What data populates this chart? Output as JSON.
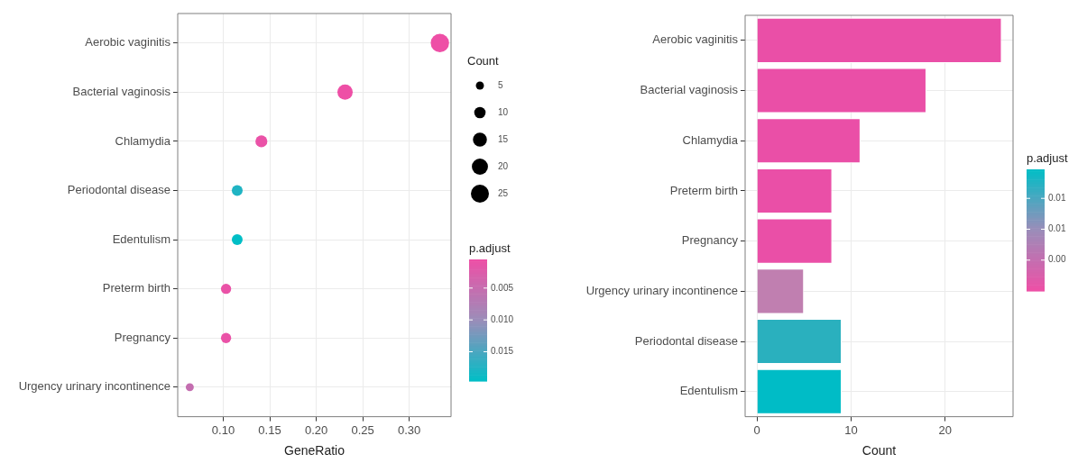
{
  "chart_data": [
    {
      "type": "bubble",
      "orientation": "horizontal",
      "xlabel": "GeneRatio",
      "legend_title": "Count",
      "clabel": "p.adjust",
      "categories": [
        "Aerobic vaginitis",
        "Bacterial vaginosis",
        "Chlamydia",
        "Periodontal disease",
        "Edentulism",
        "Preterm birth",
        "Pregnancy",
        "Urgency urinary incontinence"
      ],
      "values": [
        0.333,
        0.231,
        0.141,
        0.115,
        0.115,
        0.103,
        0.103,
        0.064
      ],
      "sizes": [
        26,
        18,
        11,
        9,
        9,
        8,
        8,
        5
      ],
      "size_legend": [
        5,
        10,
        15,
        20,
        25
      ],
      "cvalues": [
        0.0005,
        0.0005,
        0.001,
        0.0176,
        0.0196,
        0.001,
        0.001,
        0.0053
      ],
      "clim": [
        0.0196,
        0.0005
      ],
      "cticks": [
        0.005,
        {
          "value": 0.01,
          "label": "0.010"
        },
        0.015
      ],
      "xlim": [
        0.051,
        0.345
      ],
      "xticks": [
        {
          "value": 0.1,
          "label": "0.10"
        },
        {
          "value": 0.15,
          "label": "0.15"
        },
        {
          "value": 0.2,
          "label": "0.20"
        },
        {
          "value": 0.25,
          "label": "0.25"
        },
        {
          "value": 0.3,
          "label": "0.30"
        }
      ],
      "grid": true
    },
    {
      "type": "bar",
      "orientation": "horizontal",
      "xlabel": "Count",
      "clabel": "p.adjust",
      "categories": [
        "Aerobic vaginitis",
        "Bacterial vaginosis",
        "Chlamydia",
        "Preterm birth",
        "Pregnancy",
        "Urgency urinary incontinence",
        "Periodontal disease",
        "Edentulism"
      ],
      "values": [
        26,
        18,
        11,
        8,
        8,
        5,
        9,
        9
      ],
      "colors": [
        "#ea4fa7",
        "#ea4fa7",
        "#ea4fa7",
        "#ea4fa7",
        "#ea4fa7",
        "#c07fb0",
        "#2ab0be",
        "#00bcc6"
      ],
      "clim": [
        0.0,
        0.0197
      ],
      "cticks": [
        {
          "value": 0.015,
          "label": "0.01"
        },
        {
          "value": 0.01,
          "label": "0.01"
        },
        {
          "value": 0.005,
          "label": "0.00"
        }
      ],
      "xlim": [
        -1.25,
        27.2
      ],
      "xticks": [
        0,
        10,
        20
      ],
      "grid": true
    }
  ]
}
